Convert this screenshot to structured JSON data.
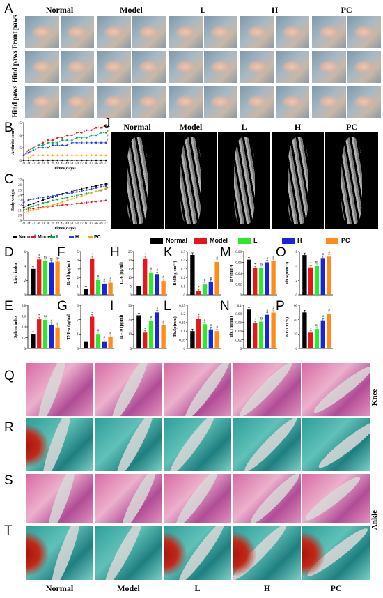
{
  "groups": [
    "Normal",
    "Model",
    "L",
    "H",
    "PC"
  ],
  "panels": {
    "A": "A",
    "B": "B",
    "C": "C",
    "D": "D",
    "E": "E",
    "F": "F",
    "G": "G",
    "H": "H",
    "I": "I",
    "J": "J",
    "K": "K",
    "L": "L",
    "M": "M",
    "N": "N",
    "O": "O",
    "P": "P",
    "Q": "Q",
    "R": "R",
    "S": "S",
    "T": "T"
  },
  "paw_rows": [
    "Front paws",
    "Hind paws",
    "Hind paws"
  ],
  "side_labels": {
    "knee": "Knee",
    "ankle": "Ankle"
  },
  "line_legend": [
    {
      "label": "Normal",
      "color": "#000000"
    },
    {
      "label": "Model",
      "color": "#e41a1c"
    },
    {
      "label": "L",
      "color": "#00b050"
    },
    {
      "label": "H",
      "color": "#1f3fff"
    },
    {
      "label": "PC",
      "color": "#ffa500"
    }
  ],
  "bar_legend": [
    {
      "label": "Normal",
      "color": "#000000"
    },
    {
      "label": "Model",
      "color": "#e8151b"
    },
    {
      "label": "L",
      "color": "#2ee82e"
    },
    {
      "label": "H",
      "color": "#1a22e0"
    },
    {
      "label": "PC",
      "color": "#ff8c1a"
    }
  ],
  "chart_data": [
    {
      "id": "B",
      "type": "line",
      "xlabel": "Times(days)",
      "ylabel": "Arthritis score",
      "x": [
        21,
        24,
        27,
        30,
        33,
        36,
        39,
        42,
        45,
        48,
        51,
        54,
        57,
        60,
        63,
        66,
        69,
        72
      ],
      "ylim": [
        0,
        15
      ],
      "yticks": [
        0,
        5,
        10,
        15
      ],
      "series": [
        {
          "name": "Normal",
          "values": [
            0,
            0,
            0,
            0,
            0,
            0,
            0,
            0,
            0,
            0,
            0,
            0,
            0,
            0,
            0,
            0,
            0,
            0
          ]
        },
        {
          "name": "Model",
          "values": [
            2,
            4,
            5,
            6,
            7,
            8,
            8,
            9,
            9,
            10,
            10,
            11,
            11,
            12,
            12,
            13,
            13,
            14
          ]
        },
        {
          "name": "L",
          "values": [
            2,
            3,
            5,
            6,
            6,
            7,
            7,
            7,
            8,
            8,
            8,
            9,
            9,
            9,
            10,
            10,
            11,
            11
          ]
        },
        {
          "name": "H",
          "values": [
            2,
            3,
            4,
            5,
            5,
            5,
            6,
            6,
            6,
            6,
            7,
            7,
            7,
            7,
            7,
            7,
            7,
            7
          ]
        },
        {
          "name": "PC",
          "values": [
            1,
            1,
            2,
            2,
            2,
            2,
            2,
            2,
            2,
            2,
            2,
            2,
            2,
            2,
            2,
            2,
            2,
            2
          ]
        }
      ],
      "end_marks": [
        "**",
        "#",
        "#",
        "#"
      ]
    },
    {
      "id": "C",
      "type": "line",
      "xlabel": "Times(days)",
      "ylabel": "Body weight",
      "x": [
        21,
        24,
        27,
        30,
        33,
        36,
        39,
        42,
        45,
        48,
        51,
        54,
        57,
        60,
        63,
        66,
        69,
        72
      ],
      "ylim": [
        19,
        27
      ],
      "yticks": [
        19,
        20,
        21,
        22,
        23,
        24,
        25,
        26,
        27
      ],
      "series": [
        {
          "name": "Normal",
          "values": [
            21.5,
            22,
            22.3,
            22.7,
            23,
            23.3,
            23.6,
            23.9,
            24.2,
            24.5,
            24.7,
            25,
            25.2,
            25.4,
            25.6,
            25.8,
            26,
            26.2
          ]
        },
        {
          "name": "Model",
          "values": [
            21,
            21.2,
            21.3,
            21.5,
            21.6,
            21.7,
            21.8,
            21.9,
            22,
            22.1,
            22.2,
            22.3,
            22.4,
            22.5,
            22.6,
            22.7,
            22.8,
            22.9
          ]
        },
        {
          "name": "L",
          "values": [
            21,
            21.5,
            21.8,
            22.1,
            22.4,
            22.6,
            22.9,
            23.1,
            23.3,
            23.5,
            23.7,
            23.9,
            24.1,
            24.3,
            24.5,
            24.7,
            24.9,
            25.1
          ]
        },
        {
          "name": "H",
          "values": [
            22.5,
            23,
            23.2,
            23.4,
            23.5,
            23.7,
            23.8,
            24,
            24.1,
            24.3,
            24.4,
            24.6,
            24.8,
            25,
            25.2,
            25.4,
            25.6,
            25.8
          ]
        },
        {
          "name": "PC",
          "values": [
            20.5,
            20.8,
            21,
            21.2,
            21.5,
            21.8,
            22,
            22.3,
            22.6,
            22.9,
            23.2,
            23.5,
            23.8,
            24.1,
            24.4,
            24.7,
            25,
            25.3
          ]
        }
      ],
      "end_marks": [
        "#",
        "*"
      ]
    },
    {
      "id": "D",
      "type": "bar",
      "ylabel": "Liver index",
      "ylim": [
        0,
        6
      ],
      "yticks": [
        0,
        2,
        4,
        6
      ],
      "values": [
        3.6,
        4.9,
        4.7,
        4.5,
        4.6
      ],
      "marks": [
        "",
        "*",
        "ns",
        "ns",
        "ns"
      ]
    },
    {
      "id": "E",
      "type": "bar",
      "ylabel": "Spleen index",
      "ylim": [
        0,
        0.8
      ],
      "yticks": [
        0.0,
        0.2,
        0.4,
        0.6,
        0.8
      ],
      "values": [
        0.27,
        0.54,
        0.53,
        0.44,
        0.39
      ],
      "marks": [
        "",
        "*",
        "ns",
        "#",
        "#"
      ]
    },
    {
      "id": "F",
      "type": "bar",
      "ylabel": "IL-1β (pg/ml)",
      "ylim": [
        0,
        5
      ],
      "yticks": [
        0,
        1,
        2,
        3,
        4,
        5
      ],
      "values": [
        0.7,
        4.2,
        1.7,
        1.3,
        1.4
      ],
      "marks": [
        "",
        "*",
        "#",
        "#",
        "#"
      ]
    },
    {
      "id": "G",
      "type": "bar",
      "ylabel": "TNF-α (pg/ml)",
      "ylim": [
        0,
        3
      ],
      "yticks": [
        0,
        1,
        2,
        3
      ],
      "values": [
        0.5,
        2.2,
        1.0,
        0.5,
        0.8
      ],
      "marks": [
        "",
        "*",
        "#",
        "#",
        "#"
      ]
    },
    {
      "id": "H",
      "type": "bar",
      "ylabel": "IL-6 (pg/ml)",
      "ylim": [
        0,
        25
      ],
      "yticks": [
        0,
        5,
        10,
        15,
        20,
        25
      ],
      "values": [
        5,
        21,
        13,
        12,
        8
      ],
      "marks": [
        "",
        "*",
        "#",
        "#",
        "#"
      ]
    },
    {
      "id": "I",
      "type": "bar",
      "ylabel": "IL-10 (pg/ml)",
      "ylim": [
        0,
        30
      ],
      "yticks": [
        0,
        10,
        20,
        30
      ],
      "values": [
        23,
        11,
        19,
        25,
        16
      ],
      "marks": [
        "",
        "*",
        "#",
        "#",
        "#"
      ]
    },
    {
      "id": "K",
      "type": "bar",
      "ylabel": "BMD(g cm⁻³)",
      "ylim": [
        0,
        0.5
      ],
      "yticks": [
        0.0,
        0.1,
        0.2,
        0.3,
        0.4,
        0.5
      ],
      "values": [
        0.46,
        0.04,
        0.12,
        0.15,
        0.38
      ],
      "marks": [
        "",
        "*",
        "#",
        "#",
        "#"
      ]
    },
    {
      "id": "L",
      "type": "bar",
      "ylabel": "Tb.Sp(mm)",
      "ylim": [
        0,
        0.25
      ],
      "yticks": [
        0.0,
        0.05,
        0.1,
        0.15,
        0.2,
        0.25
      ],
      "values": [
        0.1,
        0.17,
        0.14,
        0.11,
        0.1
      ],
      "marks": [
        "",
        "*",
        "#",
        "#",
        "#"
      ]
    },
    {
      "id": "M",
      "type": "bar",
      "ylabel": "BV(mm³)",
      "ylim": [
        0,
        0.08
      ],
      "yticks": [
        0.0,
        0.02,
        0.04,
        0.06,
        0.08
      ],
      "values": [
        0.065,
        0.049,
        0.05,
        0.06,
        0.062
      ],
      "marks": [
        "",
        "*",
        "ns",
        "#",
        "#"
      ]
    },
    {
      "id": "N",
      "type": "bar",
      "ylabel": "Tb.Th(mm)",
      "ylim": [
        0,
        0.1
      ],
      "yticks": [
        0.0,
        0.02,
        0.04,
        0.06,
        0.08,
        0.1
      ],
      "values": [
        0.09,
        0.058,
        0.062,
        0.078,
        0.083
      ],
      "marks": [
        "",
        "*",
        "ns",
        "#",
        "#"
      ]
    },
    {
      "id": "O",
      "type": "bar",
      "ylabel": "Tb.N(mm⁻¹)",
      "ylim": [
        0,
        6
      ],
      "yticks": [
        0,
        2,
        4,
        6
      ],
      "values": [
        5.5,
        3.8,
        4.0,
        5.1,
        5.3
      ],
      "marks": [
        "",
        "*",
        "ns",
        "#",
        "#"
      ]
    },
    {
      "id": "P",
      "type": "bar",
      "ylabel": "BV/TV(%)",
      "ylim": [
        0,
        60
      ],
      "yticks": [
        0,
        20,
        40,
        60
      ],
      "values": [
        50,
        22,
        27,
        39,
        48
      ],
      "marks": [
        "",
        "*",
        "ns",
        "#",
        "#"
      ]
    }
  ],
  "colors": {
    "normal": "#000000",
    "model": "#e8151b",
    "l": "#2ee82e",
    "h": "#1a22e0",
    "pc": "#ff8c1a"
  }
}
